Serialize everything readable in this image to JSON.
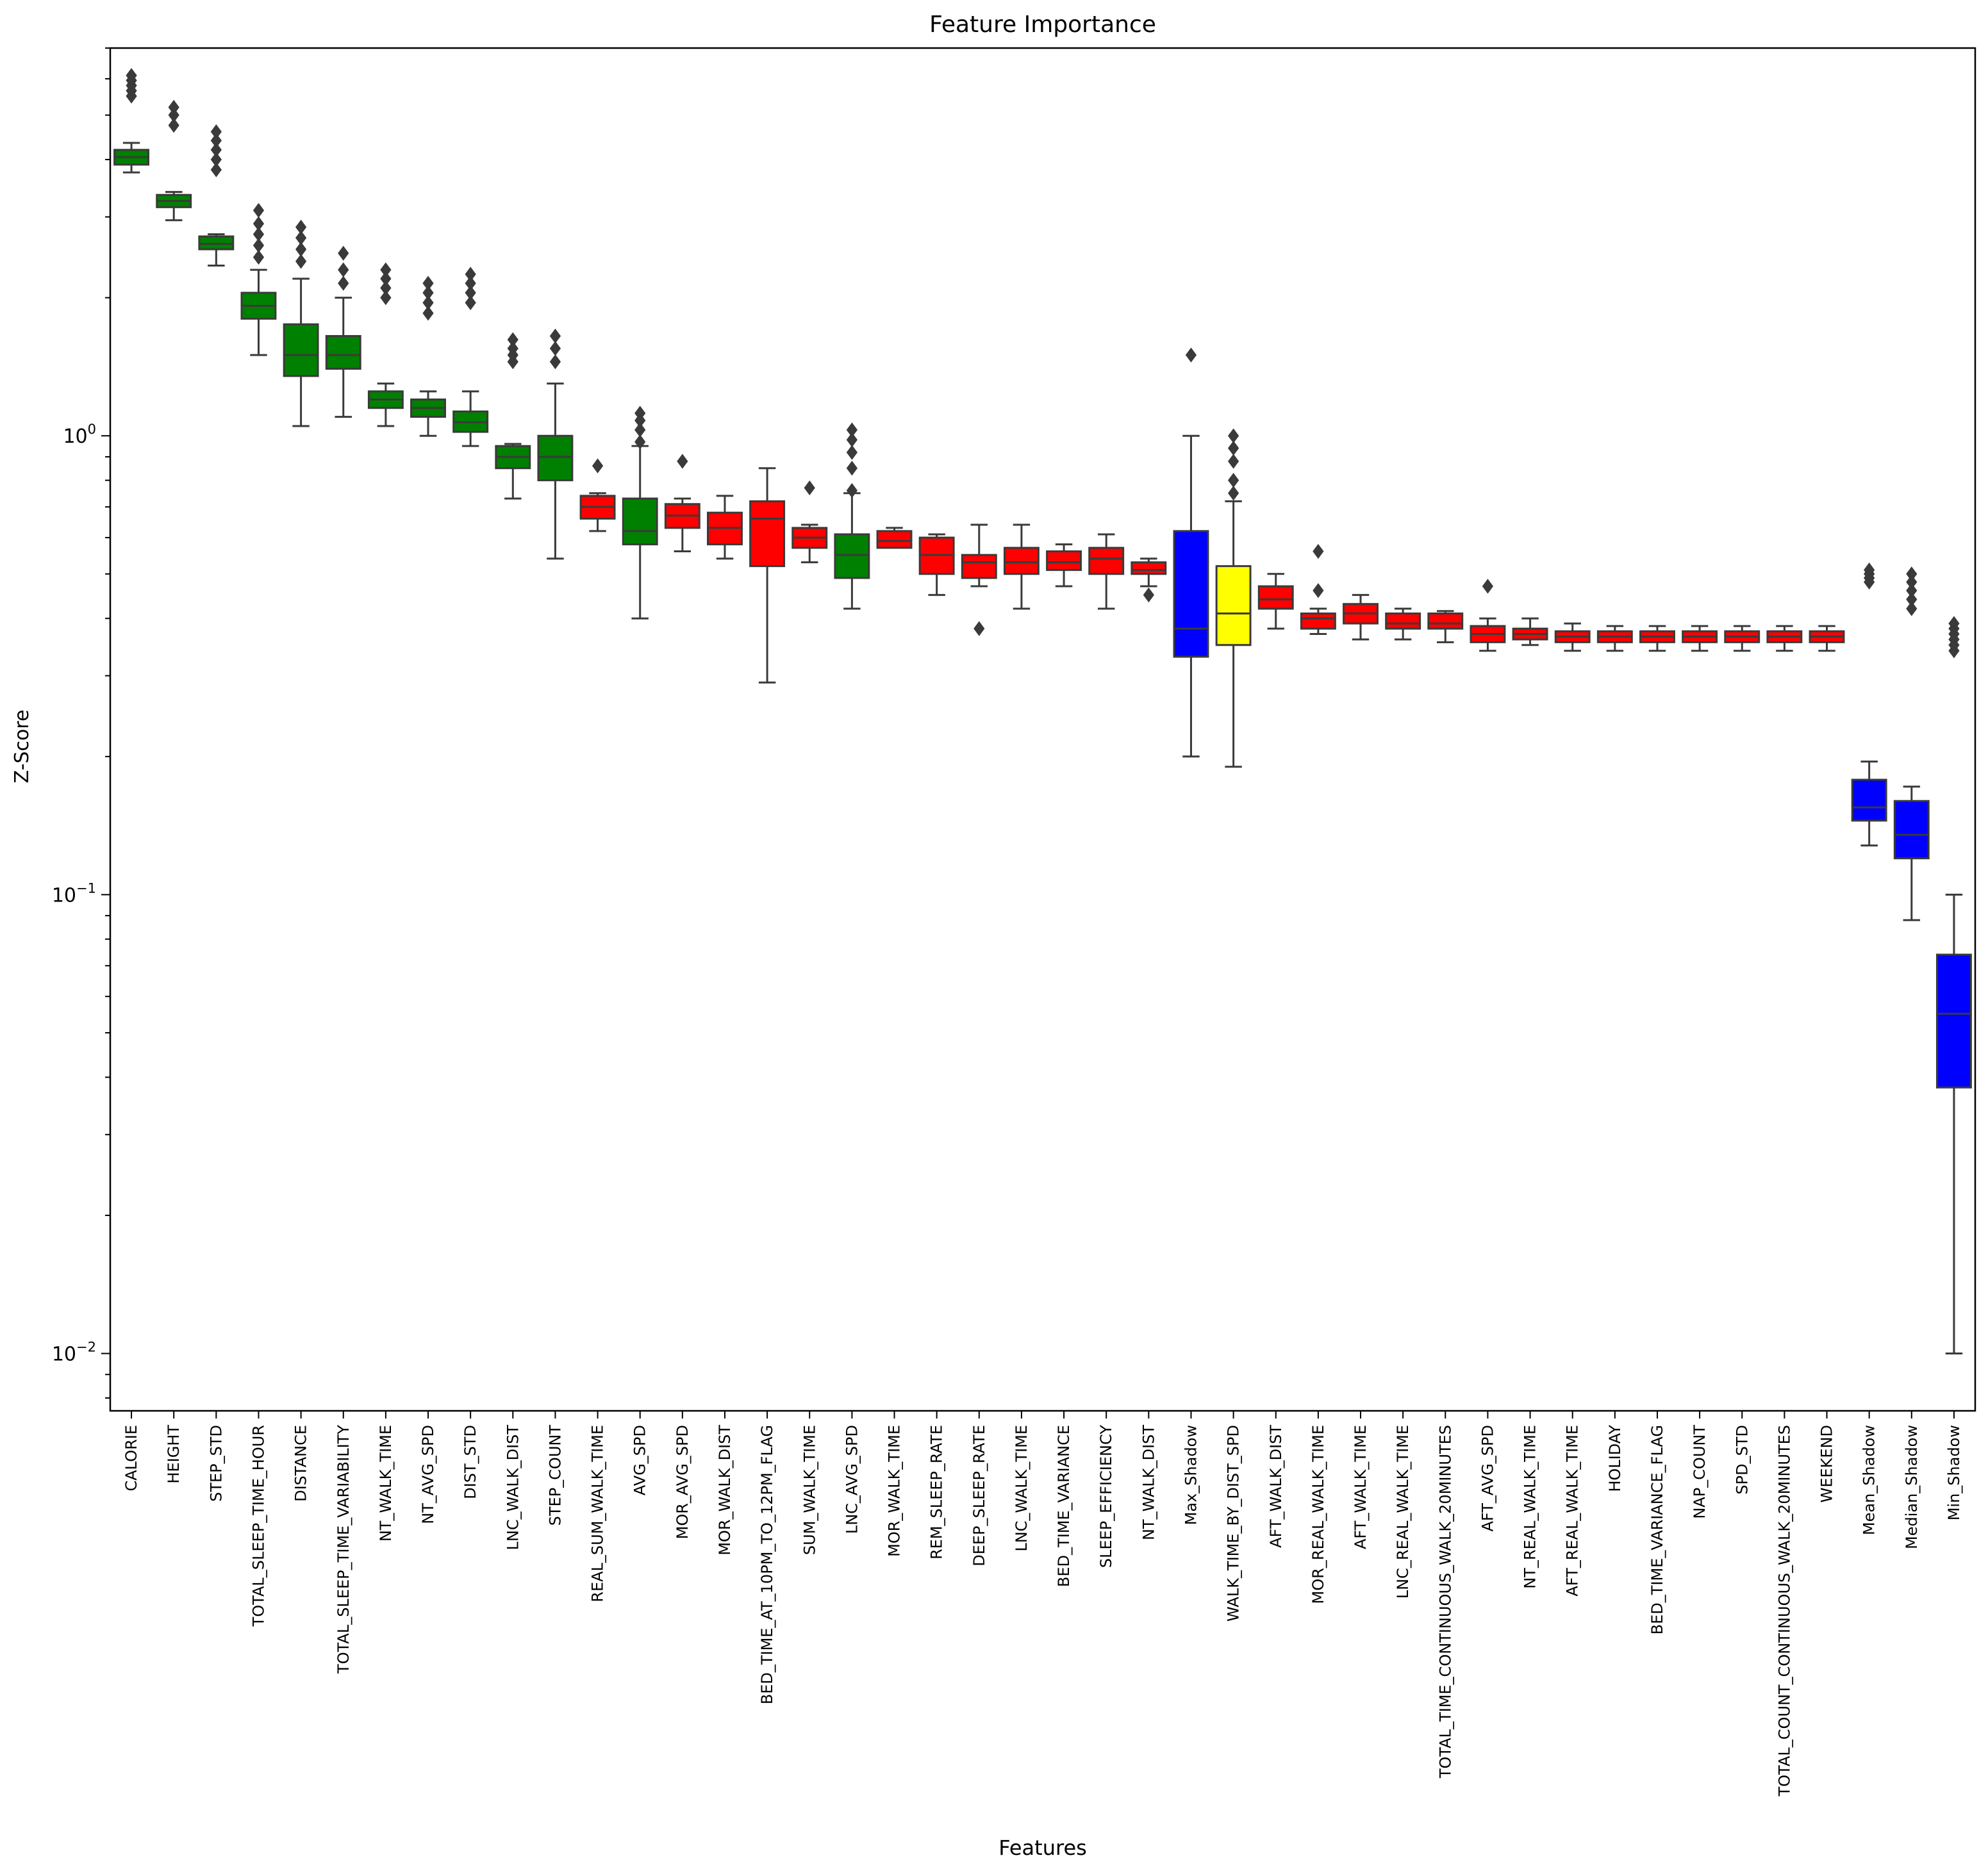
{
  "chart_data": {
    "type": "box",
    "title": "Feature Importance",
    "xlabel": "Features",
    "ylabel": "Z-Score",
    "yscale": "log",
    "ylim": [
      0.0075,
      7.0
    ],
    "yticks": [
      {
        "value": 1,
        "base": "10",
        "exp": "0"
      },
      {
        "value": 0.1,
        "base": "10",
        "exp": "−1"
      },
      {
        "value": 0.01,
        "base": "10",
        "exp": "−2"
      }
    ],
    "colors": {
      "green": "#008000",
      "red": "#ff0000",
      "blue": "#0000ff",
      "yellow": "#ffff00",
      "edge": "#3a3a3a"
    },
    "features": [
      {
        "name": "CALORIE",
        "color": "green",
        "q1": 3.9,
        "median": 4.05,
        "q3": 4.2,
        "wlo": 3.75,
        "whi": 4.35,
        "outliers": [
          5.5,
          5.65,
          5.8,
          5.95,
          6.1
        ]
      },
      {
        "name": "HEIGHT",
        "color": "green",
        "q1": 3.15,
        "median": 3.25,
        "q3": 3.35,
        "wlo": 2.95,
        "whi": 3.4,
        "outliers": [
          4.75,
          5.0,
          5.2
        ]
      },
      {
        "name": "STEP_STD",
        "color": "green",
        "q1": 2.55,
        "median": 2.62,
        "q3": 2.72,
        "wlo": 2.35,
        "whi": 2.75,
        "outliers": [
          3.8,
          4.0,
          4.2,
          4.4,
          4.6
        ]
      },
      {
        "name": "TOTAL_SLEEP_TIME_HOUR",
        "color": "green",
        "q1": 1.8,
        "median": 1.92,
        "q3": 2.05,
        "wlo": 1.5,
        "whi": 2.3,
        "outliers": [
          2.45,
          2.6,
          2.75,
          2.9,
          3.1
        ]
      },
      {
        "name": "DISTANCE",
        "color": "green",
        "q1": 1.35,
        "median": 1.5,
        "q3": 1.75,
        "wlo": 1.05,
        "whi": 2.2,
        "outliers": [
          2.4,
          2.55,
          2.7,
          2.85
        ]
      },
      {
        "name": "TOTAL_SLEEP_TIME_VARIABILITY",
        "color": "green",
        "q1": 1.4,
        "median": 1.5,
        "q3": 1.65,
        "wlo": 1.1,
        "whi": 2.0,
        "outliers": [
          2.15,
          2.3,
          2.5
        ]
      },
      {
        "name": "NT_WALK_TIME",
        "color": "green",
        "q1": 1.15,
        "median": 1.2,
        "q3": 1.25,
        "wlo": 1.05,
        "whi": 1.3,
        "outliers": [
          2.0,
          2.1,
          2.2,
          2.3
        ]
      },
      {
        "name": "NT_AVG_SPD",
        "color": "green",
        "q1": 1.1,
        "median": 1.15,
        "q3": 1.2,
        "wlo": 1.0,
        "whi": 1.25,
        "outliers": [
          1.85,
          1.95,
          2.05,
          2.15
        ]
      },
      {
        "name": "DIST_STD",
        "color": "green",
        "q1": 1.02,
        "median": 1.07,
        "q3": 1.13,
        "wlo": 0.95,
        "whi": 1.25,
        "outliers": [
          1.95,
          2.05,
          2.15,
          2.25
        ]
      },
      {
        "name": "LNC_WALK_DIST",
        "color": "green",
        "q1": 0.85,
        "median": 0.9,
        "q3": 0.95,
        "wlo": 0.73,
        "whi": 0.96,
        "outliers": [
          1.45,
          1.5,
          1.55,
          1.62
        ]
      },
      {
        "name": "STEP_COUNT",
        "color": "green",
        "q1": 0.8,
        "median": 0.9,
        "q3": 1.0,
        "wlo": 0.54,
        "whi": 1.3,
        "outliers": [
          1.45,
          1.55,
          1.65
        ]
      },
      {
        "name": "REAL_SUM_WALK_TIME",
        "color": "red",
        "q1": 0.66,
        "median": 0.7,
        "q3": 0.74,
        "wlo": 0.62,
        "whi": 0.75,
        "outliers": [
          0.86
        ]
      },
      {
        "name": "AVG_SPD",
        "color": "green",
        "q1": 0.58,
        "median": 0.62,
        "q3": 0.73,
        "wlo": 0.4,
        "whi": 0.95,
        "outliers": [
          0.97,
          1.03,
          1.08,
          1.12
        ]
      },
      {
        "name": "MOR_AVG_SPD",
        "color": "red",
        "q1": 0.63,
        "median": 0.67,
        "q3": 0.71,
        "wlo": 0.56,
        "whi": 0.73,
        "outliers": [
          0.88
        ]
      },
      {
        "name": "MOR_WALK_DIST",
        "color": "red",
        "q1": 0.58,
        "median": 0.63,
        "q3": 0.68,
        "wlo": 0.54,
        "whi": 0.74,
        "outliers": []
      },
      {
        "name": "BED_TIME_AT_10PM_TO_12PM_FLAG",
        "color": "red",
        "q1": 0.52,
        "median": 0.66,
        "q3": 0.72,
        "wlo": 0.29,
        "whi": 0.85,
        "outliers": []
      },
      {
        "name": "SUM_WALK_TIME",
        "color": "red",
        "q1": 0.57,
        "median": 0.6,
        "q3": 0.63,
        "wlo": 0.53,
        "whi": 0.64,
        "outliers": [
          0.77
        ]
      },
      {
        "name": "LNC_AVG_SPD",
        "color": "green",
        "q1": 0.49,
        "median": 0.55,
        "q3": 0.61,
        "wlo": 0.42,
        "whi": 0.75,
        "outliers": [
          0.76,
          0.85,
          0.92,
          0.98,
          1.03
        ]
      },
      {
        "name": "MOR_WALK_TIME",
        "color": "red",
        "q1": 0.57,
        "median": 0.59,
        "q3": 0.62,
        "wlo": 0.57,
        "whi": 0.63,
        "outliers": []
      },
      {
        "name": "REM_SLEEP_RATE",
        "color": "red",
        "q1": 0.5,
        "median": 0.55,
        "q3": 0.6,
        "wlo": 0.45,
        "whi": 0.61,
        "outliers": []
      },
      {
        "name": "DEEP_SLEEP_RATE",
        "color": "red",
        "q1": 0.49,
        "median": 0.53,
        "q3": 0.55,
        "wlo": 0.47,
        "whi": 0.64,
        "outliers": [
          0.38
        ]
      },
      {
        "name": "LNC_WALK_TIME",
        "color": "red",
        "q1": 0.5,
        "median": 0.53,
        "q3": 0.57,
        "wlo": 0.42,
        "whi": 0.64,
        "outliers": []
      },
      {
        "name": "BED_TIME_VARIANCE",
        "color": "red",
        "q1": 0.51,
        "median": 0.53,
        "q3": 0.56,
        "wlo": 0.47,
        "whi": 0.58,
        "outliers": []
      },
      {
        "name": "SLEEP_EFFICIENCY",
        "color": "red",
        "q1": 0.5,
        "median": 0.54,
        "q3": 0.57,
        "wlo": 0.42,
        "whi": 0.61,
        "outliers": []
      },
      {
        "name": "NT_WALK_DIST",
        "color": "red",
        "q1": 0.5,
        "median": 0.51,
        "q3": 0.53,
        "wlo": 0.47,
        "whi": 0.54,
        "outliers": [
          0.45
        ]
      },
      {
        "name": "Max_Shadow",
        "color": "blue",
        "q1": 0.33,
        "median": 0.38,
        "q3": 0.62,
        "wlo": 0.2,
        "whi": 1.0,
        "outliers": [
          1.5
        ]
      },
      {
        "name": "WALK_TIME_BY_DIST_SPD",
        "color": "yellow",
        "q1": 0.35,
        "median": 0.41,
        "q3": 0.52,
        "wlo": 0.19,
        "whi": 0.72,
        "outliers": [
          0.75,
          0.8,
          0.88,
          0.94,
          1.0
        ]
      },
      {
        "name": "AFT_WALK_DIST",
        "color": "red",
        "q1": 0.42,
        "median": 0.44,
        "q3": 0.47,
        "wlo": 0.38,
        "whi": 0.5,
        "outliers": []
      },
      {
        "name": "MOR_REAL_WALK_TIME",
        "color": "red",
        "q1": 0.38,
        "median": 0.4,
        "q3": 0.41,
        "wlo": 0.37,
        "whi": 0.42,
        "outliers": [
          0.46,
          0.56
        ]
      },
      {
        "name": "AFT_WALK_TIME",
        "color": "red",
        "q1": 0.39,
        "median": 0.41,
        "q3": 0.43,
        "wlo": 0.36,
        "whi": 0.45,
        "outliers": []
      },
      {
        "name": "LNC_REAL_WALK_TIME",
        "color": "red",
        "q1": 0.38,
        "median": 0.39,
        "q3": 0.41,
        "wlo": 0.36,
        "whi": 0.42,
        "outliers": []
      },
      {
        "name": "TOTAL_TIME_CONTINUOUS_WALK_20MINUTES",
        "color": "red",
        "q1": 0.38,
        "median": 0.39,
        "q3": 0.41,
        "wlo": 0.355,
        "whi": 0.415,
        "outliers": []
      },
      {
        "name": "AFT_AVG_SPD",
        "color": "red",
        "q1": 0.355,
        "median": 0.37,
        "q3": 0.385,
        "wlo": 0.34,
        "whi": 0.4,
        "outliers": [
          0.47
        ]
      },
      {
        "name": "NT_REAL_WALK_TIME",
        "color": "red",
        "q1": 0.36,
        "median": 0.37,
        "q3": 0.38,
        "wlo": 0.35,
        "whi": 0.4,
        "outliers": []
      },
      {
        "name": "AFT_REAL_WALK_TIME",
        "color": "red",
        "q1": 0.355,
        "median": 0.365,
        "q3": 0.375,
        "wlo": 0.34,
        "whi": 0.39,
        "outliers": []
      },
      {
        "name": "HOLIDAY",
        "color": "red",
        "q1": 0.355,
        "median": 0.365,
        "q3": 0.375,
        "wlo": 0.34,
        "whi": 0.385,
        "outliers": []
      },
      {
        "name": "BED_TIME_VARIANCE_FLAG",
        "color": "red",
        "q1": 0.355,
        "median": 0.365,
        "q3": 0.375,
        "wlo": 0.34,
        "whi": 0.385,
        "outliers": []
      },
      {
        "name": "NAP_COUNT",
        "color": "red",
        "q1": 0.355,
        "median": 0.365,
        "q3": 0.375,
        "wlo": 0.34,
        "whi": 0.385,
        "outliers": []
      },
      {
        "name": "SPD_STD",
        "color": "red",
        "q1": 0.355,
        "median": 0.365,
        "q3": 0.375,
        "wlo": 0.34,
        "whi": 0.385,
        "outliers": []
      },
      {
        "name": "TOTAL_COUNT_CONTINUOUS_WALK_20MINUTES",
        "color": "red",
        "q1": 0.355,
        "median": 0.365,
        "q3": 0.375,
        "wlo": 0.34,
        "whi": 0.385,
        "outliers": []
      },
      {
        "name": "WEEKEND",
        "color": "red",
        "q1": 0.355,
        "median": 0.365,
        "q3": 0.375,
        "wlo": 0.34,
        "whi": 0.385,
        "outliers": []
      },
      {
        "name": "Mean_Shadow",
        "color": "blue",
        "q1": 0.145,
        "median": 0.155,
        "q3": 0.178,
        "wlo": 0.128,
        "whi": 0.195,
        "outliers": [
          0.48,
          0.49,
          0.5,
          0.51
        ]
      },
      {
        "name": "Median_Shadow",
        "color": "blue",
        "q1": 0.12,
        "median": 0.135,
        "q3": 0.16,
        "wlo": 0.088,
        "whi": 0.172,
        "outliers": [
          0.42,
          0.44,
          0.46,
          0.48,
          0.5
        ]
      },
      {
        "name": "Min_Shadow",
        "color": "blue",
        "q1": 0.038,
        "median": 0.055,
        "q3": 0.074,
        "wlo": 0.01,
        "whi": 0.1,
        "outliers": [
          0.34,
          0.35,
          0.36,
          0.37,
          0.38,
          0.39
        ]
      }
    ]
  }
}
